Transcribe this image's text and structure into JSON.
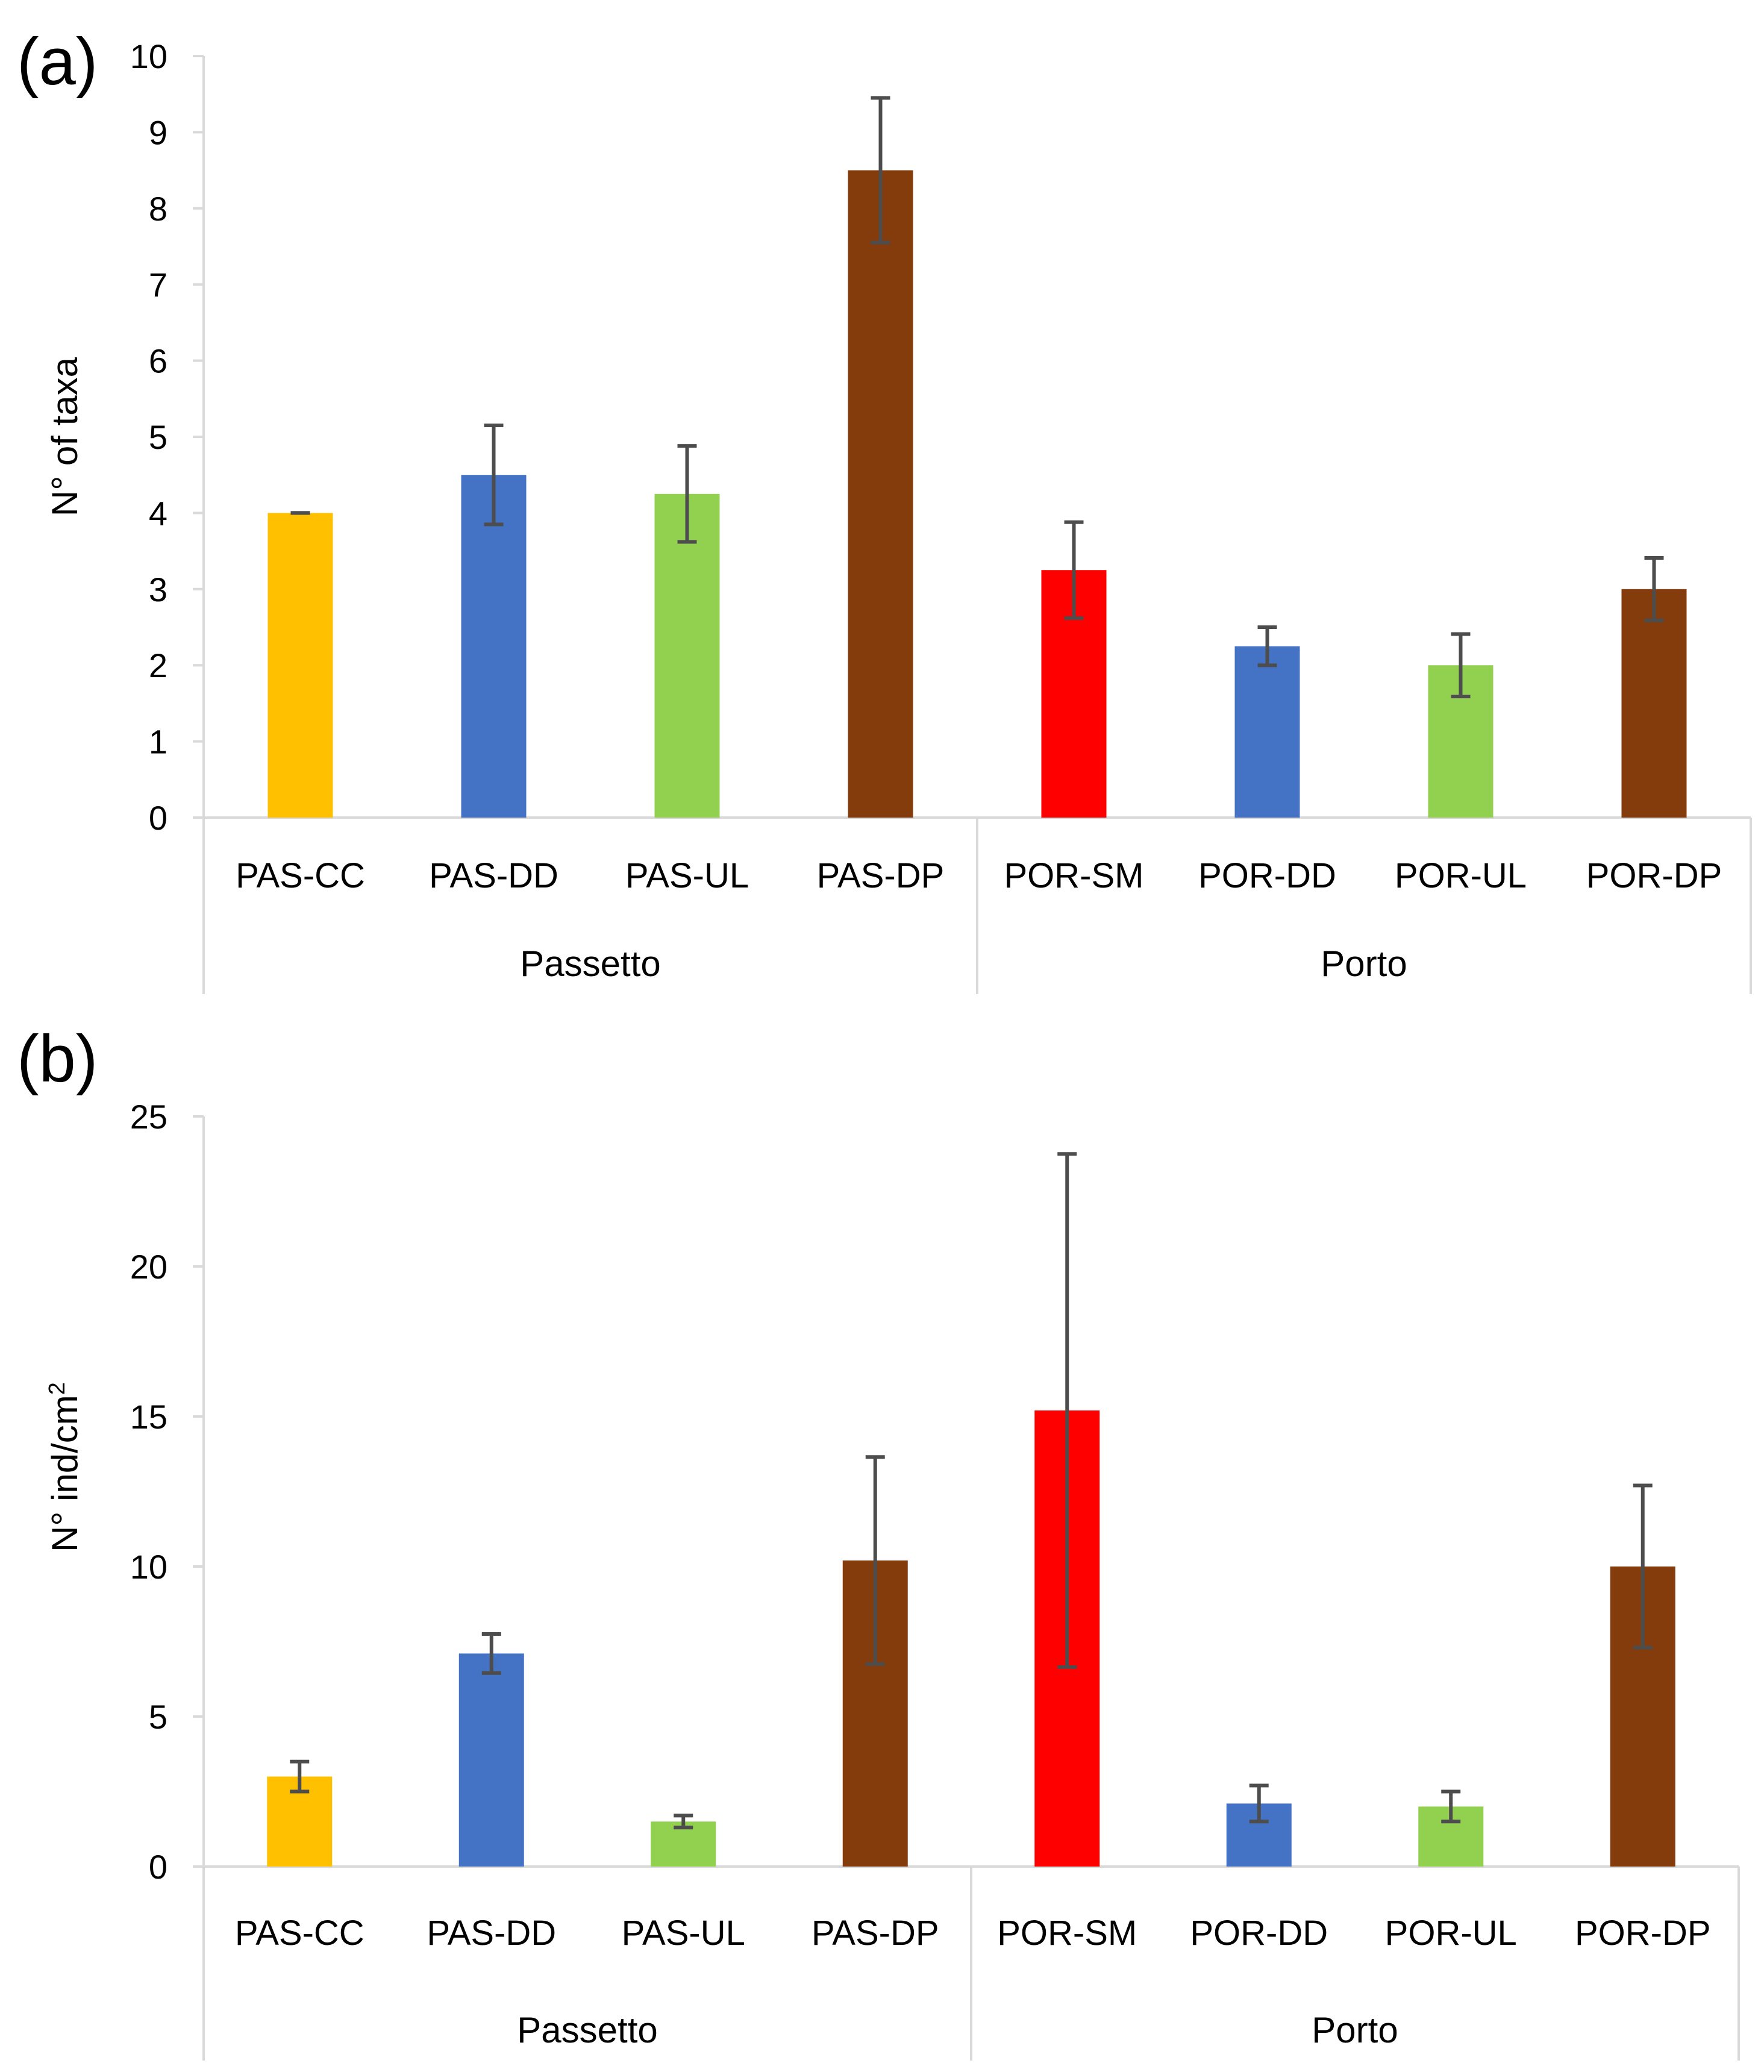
{
  "chart_data": [
    {
      "type": "bar",
      "panel_label": "(a)",
      "title": "",
      "xlabel": "",
      "ylabel": "N° of taxa",
      "ylim": [
        0,
        10
      ],
      "yticks": [
        0,
        1,
        2,
        3,
        4,
        5,
        6,
        7,
        8,
        9,
        10
      ],
      "grid": false,
      "categories": [
        "PAS-CC",
        "PAS-DD",
        "PAS-UL",
        "PAS-DP",
        "POR-SM",
        "POR-DD",
        "POR-UL",
        "POR-DP"
      ],
      "groups": [
        {
          "name": "Passetto",
          "count": 4
        },
        {
          "name": "Porto",
          "count": 4
        }
      ],
      "values": [
        4.0,
        4.5,
        4.25,
        8.5,
        3.25,
        2.25,
        2.0,
        3.0
      ],
      "errors": [
        0.0,
        0.65,
        0.63,
        0.95,
        0.63,
        0.25,
        0.41,
        0.41
      ],
      "colors": [
        "#FFC000",
        "#4472C4",
        "#92D050",
        "#843C0C",
        "#FF0000",
        "#4472C4",
        "#92D050",
        "#843C0C"
      ]
    },
    {
      "type": "bar",
      "panel_label": "(b)",
      "title": "",
      "xlabel": "",
      "ylabel": "N° ind/cm",
      "ylabel_superscript": "2",
      "ylim": [
        0,
        25
      ],
      "yticks": [
        0,
        5,
        10,
        15,
        20,
        25
      ],
      "grid": false,
      "categories": [
        "PAS-CC",
        "PAS-DD",
        "PAS-UL",
        "PAS-DP",
        "POR-SM",
        "POR-DD",
        "POR-UL",
        "POR-DP"
      ],
      "groups": [
        {
          "name": "Passetto",
          "count": 4
        },
        {
          "name": "Porto",
          "count": 4
        }
      ],
      "values": [
        3.0,
        7.1,
        1.5,
        10.2,
        15.2,
        2.1,
        2.0,
        10.0
      ],
      "errors": [
        0.5,
        0.65,
        0.2,
        3.45,
        8.55,
        0.6,
        0.5,
        2.7
      ],
      "colors": [
        "#FFC000",
        "#4472C4",
        "#92D050",
        "#843C0C",
        "#FF0000",
        "#4472C4",
        "#92D050",
        "#843C0C"
      ]
    }
  ]
}
